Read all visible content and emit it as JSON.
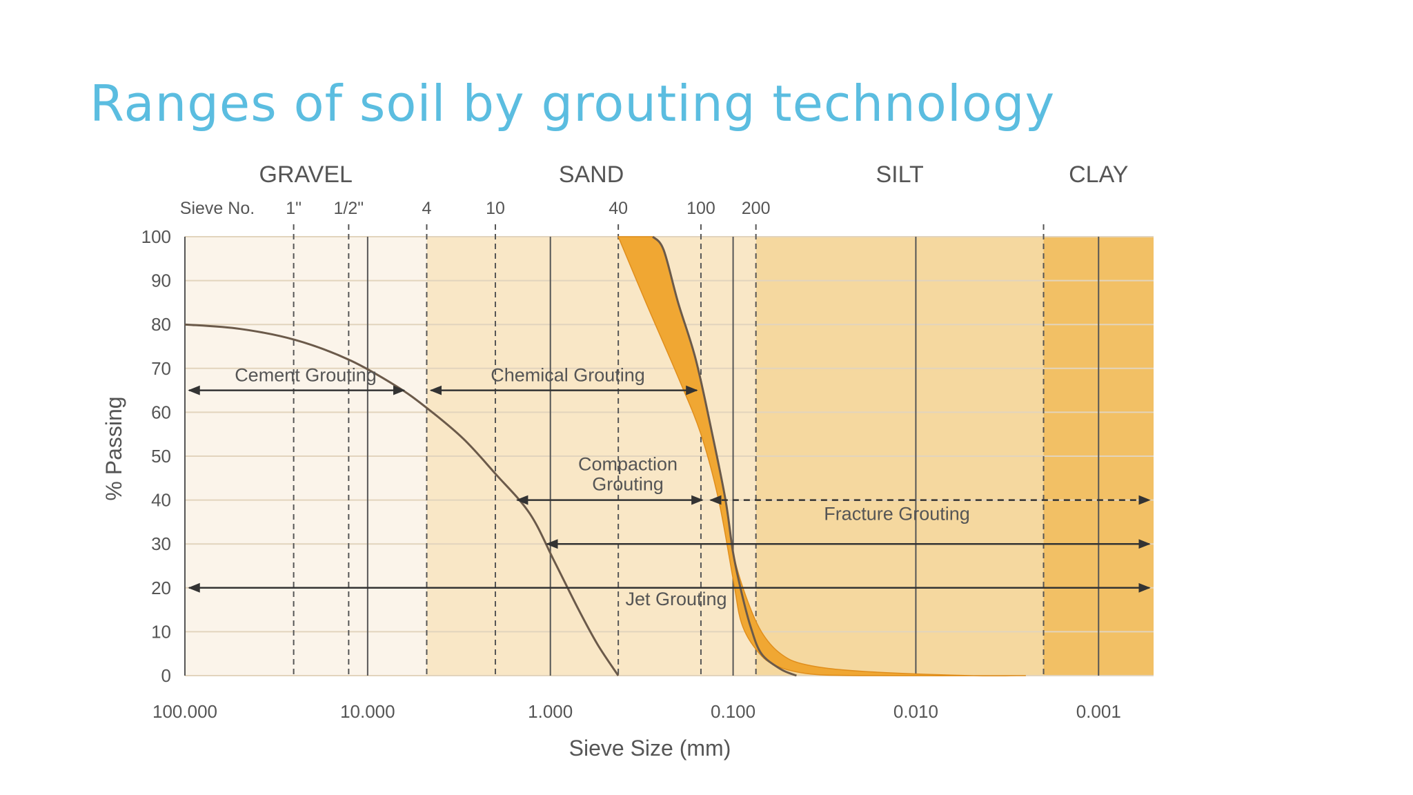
{
  "title": "Ranges of soil by grouting technology",
  "chart_data": {
    "type": "line",
    "xlabel": "Sieve Size (mm)",
    "ylabel": "% Passing",
    "x_scale": "log",
    "x_direction": "decreasing",
    "xlim": [
      100,
      0.0005
    ],
    "ylim": [
      0,
      100
    ],
    "x_ticks": [
      {
        "value": 100,
        "label": "100.000"
      },
      {
        "value": 10,
        "label": "10.000"
      },
      {
        "value": 1,
        "label": "1.000"
      },
      {
        "value": 0.1,
        "label": "0.100"
      },
      {
        "value": 0.01,
        "label": "0.010"
      },
      {
        "value": 0.001,
        "label": "0.001"
      }
    ],
    "y_ticks": [
      0,
      10,
      20,
      30,
      40,
      50,
      60,
      70,
      80,
      90,
      100
    ],
    "grid": true,
    "sieve_header": "Sieve No.",
    "sieves": [
      {
        "label": "1\"",
        "size": 25.4
      },
      {
        "label": "1/2\"",
        "size": 12.7
      },
      {
        "label": "4",
        "size": 4.75
      },
      {
        "label": "10",
        "size": 2.0
      },
      {
        "label": "40",
        "size": 0.425
      },
      {
        "label": "100",
        "size": 0.15
      },
      {
        "label": "200",
        "size": 0.075
      }
    ],
    "zones": [
      {
        "name": "GRAVEL",
        "from": 100,
        "to": 4.75,
        "color": "#fbf4ea"
      },
      {
        "name": "SAND",
        "from": 4.75,
        "to": 0.075,
        "color": "#f9e7c6"
      },
      {
        "name": "SILT",
        "from": 0.075,
        "to": 0.002,
        "color": "#f5d89f"
      },
      {
        "name": "CLAY",
        "from": 0.002,
        "to": 0.0005,
        "color": "#f2c065"
      }
    ],
    "gravel_curve": [
      [
        100,
        80
      ],
      [
        50,
        79
      ],
      [
        25,
        76.5
      ],
      [
        12.7,
        72
      ],
      [
        7,
        66
      ],
      [
        4.75,
        61
      ],
      [
        3,
        54
      ],
      [
        2,
        46
      ],
      [
        1.3,
        37
      ],
      [
        0.95,
        26
      ],
      [
        0.7,
        15
      ],
      [
        0.55,
        7
      ],
      [
        0.425,
        0
      ]
    ],
    "sand_band_upper": [
      [
        0.275,
        100
      ],
      [
        0.24,
        97
      ],
      [
        0.2,
        85
      ],
      [
        0.16,
        72
      ],
      [
        0.13,
        55
      ],
      [
        0.11,
        40
      ],
      [
        0.1,
        28
      ],
      [
        0.085,
        18
      ],
      [
        0.07,
        10
      ],
      [
        0.055,
        5
      ],
      [
        0.04,
        2.5
      ],
      [
        0.02,
        1
      ],
      [
        0.005,
        0
      ],
      [
        0.0025,
        0
      ]
    ],
    "sand_band_lower": [
      [
        0.425,
        100
      ],
      [
        0.3,
        85
      ],
      [
        0.2,
        68
      ],
      [
        0.15,
        55
      ],
      [
        0.12,
        40
      ],
      [
        0.1,
        22
      ],
      [
        0.09,
        12
      ],
      [
        0.075,
        6
      ],
      [
        0.06,
        2.5
      ],
      [
        0.04,
        0.5
      ],
      [
        0.02,
        0
      ],
      [
        0.0025,
        0
      ]
    ],
    "sand_curve": [
      [
        0.275,
        100
      ],
      [
        0.24,
        97
      ],
      [
        0.2,
        85
      ],
      [
        0.16,
        72
      ],
      [
        0.13,
        55
      ],
      [
        0.11,
        40
      ],
      [
        0.1,
        28
      ],
      [
        0.09,
        19
      ],
      [
        0.08,
        11
      ],
      [
        0.07,
        5
      ],
      [
        0.055,
        1.5
      ],
      [
        0.045,
        0
      ]
    ],
    "ranges": [
      {
        "name": "Cement Grouting",
        "from": 100,
        "to": 6,
        "y": 65,
        "dashed": false
      },
      {
        "name": "Chemical Grouting",
        "from": 4.75,
        "to": 0.15,
        "y": 65,
        "dashed": false
      },
      {
        "name": "Compaction Grouting",
        "lines": [
          "Compaction",
          "Grouting"
        ],
        "from": 1.6,
        "to": 0.14,
        "y": 40,
        "dashed": false
      },
      {
        "name": "Fracture Grouting",
        "from": 0.14,
        "to": 0.0005,
        "y": 40,
        "dashed": true
      },
      {
        "name": "Fracture Grouting extent",
        "from": 1.1,
        "to": 0.0005,
        "y": 30,
        "dashed": false
      },
      {
        "name": "Jet Grouting",
        "from": 100,
        "to": 0.0005,
        "y": 20,
        "dashed": false
      }
    ],
    "colors": {
      "band": "#f0a733",
      "curve": "#6b5a4a",
      "grid": "#666666"
    }
  }
}
